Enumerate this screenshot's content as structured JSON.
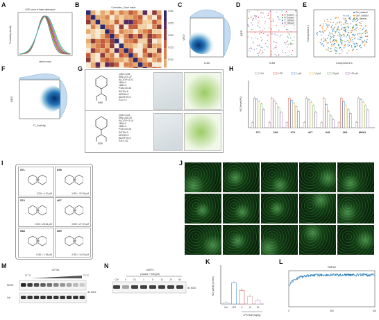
{
  "panels": {
    "A": {
      "label": "A",
      "title": "KDE curve of latent dimension",
      "xlabel": "Latent vector",
      "ylabel": "Probability density"
    },
    "B": {
      "label": "B",
      "title": "Correlation_Score matrix",
      "colorbar_ticks": [
        "0.030",
        "0.025",
        "0.020",
        "0.015",
        "0.010",
        "0.005",
        "0.000"
      ]
    },
    "C": {
      "label": "C",
      "xlabel": "IC50",
      "ylabel": "QED"
    },
    "D": {
      "label": "D",
      "xlabel": "IC50",
      "ylabel": "QED",
      "legend": [
        "A_dataset",
        "B_dataset",
        "C_dataset",
        "D_dataset"
      ]
    },
    "E": {
      "label": "E",
      "xlabel": "Component 1",
      "ylabel": "Component 2",
      "legend": [
        "Ref_dataset",
        "Gen_dataset",
        "All_dataset"
      ]
    },
    "F": {
      "label": "F",
      "xlabel": "P_Activity",
      "ylabel": "QED"
    },
    "G": {
      "label": "G",
      "rows": [
        {
          "id": "548",
          "props": "QED=0.86\nMW=270.37\nALOGP=4.01\nHBA=2\nHBD=2\nPSA=40.46\nROTB=5\nAROM=2\nALERTS=0\nSA=2.2"
        },
        {
          "id": "309",
          "props": "QED=0.81\nMW=228.29\nALOGP=3.19\nHBA=2\nHBD=2\nPSA=40.46\nROTB=3\nAROM=2\nALERTS=0\nSA=1.82"
        }
      ]
    },
    "H": {
      "label": "H",
      "ylabel": "NO level(%)",
      "legend": [
        "Ctrl",
        "LPS",
        "1 μM",
        "10 μM",
        "20 μM",
        "100 μM"
      ],
      "categories": [
        "571",
        "698",
        "574",
        "467",
        "548",
        "369",
        "MINO"
      ]
    },
    "I": {
      "label": "I",
      "compounds": [
        {
          "id": "571",
          "ic50": "IC50 = 100 μM"
        },
        {
          "id": "698",
          "ic50": "IC50 = 22.08 μM"
        },
        {
          "id": "574",
          "ic50": "IC50 = 26.61 μM"
        },
        {
          "id": "467",
          "ic50": "IC50 = 27.37 μM"
        },
        {
          "id": "548",
          "ic50": "IC50 = 1.95 μM"
        },
        {
          "id": "369",
          "ic50": "IC50 = 14.53 μM"
        }
      ]
    },
    "J": {
      "label": "J"
    },
    "K": {
      "label": "K",
      "ylabel": "NO (μmol/g protein)",
      "categories": [
        "Ctrl",
        "LPS",
        "5",
        "10",
        "20"
      ],
      "xlabel": "LPS+548 (mg/kg)"
    },
    "L": {
      "label": "L",
      "title": "RMSD",
      "xticks": [
        "0",
        "500",
        "1000"
      ]
    },
    "M": {
      "label": "M",
      "title": "CETSA",
      "t_left": "37 °C",
      "t_right": "72 °C",
      "rows": [
        "DMXD",
        "Gal"
      ],
      "ab": "IB: iNOS"
    },
    "N": {
      "label": "N",
      "title": "DARTS",
      "sub": "pronase + 548 (μM)",
      "lanes": [
        "Ctrl",
        "0",
        "0.1",
        "1",
        "5",
        "10",
        "20",
        "50"
      ],
      "ab": "IB: iNOS"
    }
  },
  "colors": {
    "blue": "#2b5fa8",
    "red": "#d6604d",
    "green": "#4daf4a",
    "orange": "#e68a2e",
    "purple": "#984ea3"
  },
  "chart_data": [
    {
      "type": "bar",
      "panel": "H",
      "categories": [
        "571",
        "698",
        "574",
        "467",
        "548",
        "369",
        "MINO"
      ],
      "series": [
        {
          "name": "Ctrl",
          "values": [
            18,
            18,
            18,
            18,
            18,
            18,
            18
          ]
        },
        {
          "name": "LPS",
          "values": [
            100,
            100,
            100,
            100,
            100,
            100,
            100
          ]
        },
        {
          "name": "1 μM",
          "values": [
            96,
            90,
            92,
            94,
            78,
            88,
            95
          ]
        },
        {
          "name": "10 μM",
          "values": [
            88,
            80,
            82,
            86,
            55,
            74,
            86
          ]
        },
        {
          "name": "20 μM",
          "values": [
            80,
            68,
            72,
            74,
            40,
            62,
            74
          ]
        },
        {
          "name": "100 μM",
          "values": [
            62,
            52,
            55,
            52,
            28,
            48,
            60
          ]
        }
      ],
      "ylim": [
        0,
        150
      ]
    },
    {
      "type": "bar",
      "panel": "K",
      "categories": [
        "Ctrl",
        "LPS",
        "5",
        "10",
        "20"
      ],
      "values": [
        0.1,
        1.7,
        1.1,
        0.6,
        0.3
      ],
      "ylim": [
        0,
        3
      ]
    },
    {
      "type": "line",
      "panel": "L",
      "title": "RMSD",
      "xlim": [
        0,
        1000
      ]
    }
  ]
}
